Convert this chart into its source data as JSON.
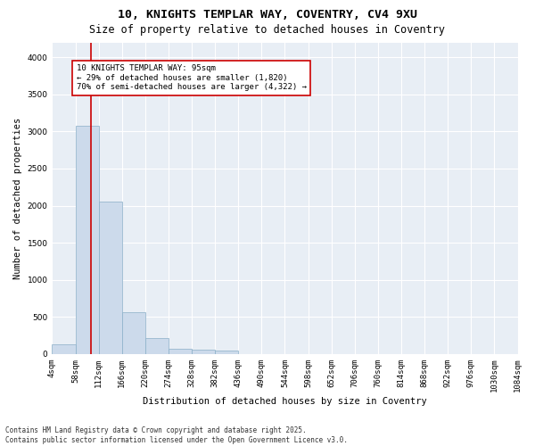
{
  "title_line1": "10, KNIGHTS TEMPLAR WAY, COVENTRY, CV4 9XU",
  "title_line2": "Size of property relative to detached houses in Coventry",
  "xlabel": "Distribution of detached houses by size in Coventry",
  "ylabel": "Number of detached properties",
  "bar_color": "#ccdaeb",
  "bar_edge_color": "#8aafc8",
  "bg_color": "#e8eef5",
  "grid_color": "#ffffff",
  "vline_color": "#cc0000",
  "annotation_text": "10 KNIGHTS TEMPLAR WAY: 95sqm\n← 29% of detached houses are smaller (1,820)\n70% of semi-detached houses are larger (4,322) →",
  "annotation_box_edge": "#cc0000",
  "bins": [
    "4sqm",
    "58sqm",
    "112sqm",
    "166sqm",
    "220sqm",
    "274sqm",
    "328sqm",
    "382sqm",
    "436sqm",
    "490sqm",
    "544sqm",
    "598sqm",
    "652sqm",
    "706sqm",
    "760sqm",
    "814sqm",
    "868sqm",
    "922sqm",
    "976sqm",
    "1030sqm",
    "1084sqm"
  ],
  "values": [
    130,
    3080,
    2060,
    570,
    210,
    75,
    65,
    50,
    0,
    0,
    0,
    0,
    0,
    0,
    0,
    0,
    0,
    0,
    0,
    0
  ],
  "ylim": [
    0,
    4200
  ],
  "yticks": [
    0,
    500,
    1000,
    1500,
    2000,
    2500,
    3000,
    3500,
    4000
  ],
  "footnote": "Contains HM Land Registry data © Crown copyright and database right 2025.\nContains public sector information licensed under the Open Government Licence v3.0.",
  "title_fontsize": 9.5,
  "subtitle_fontsize": 8.5,
  "axis_label_fontsize": 7.5,
  "tick_fontsize": 6.5,
  "footnote_fontsize": 5.5,
  "annot_fontsize": 6.5
}
